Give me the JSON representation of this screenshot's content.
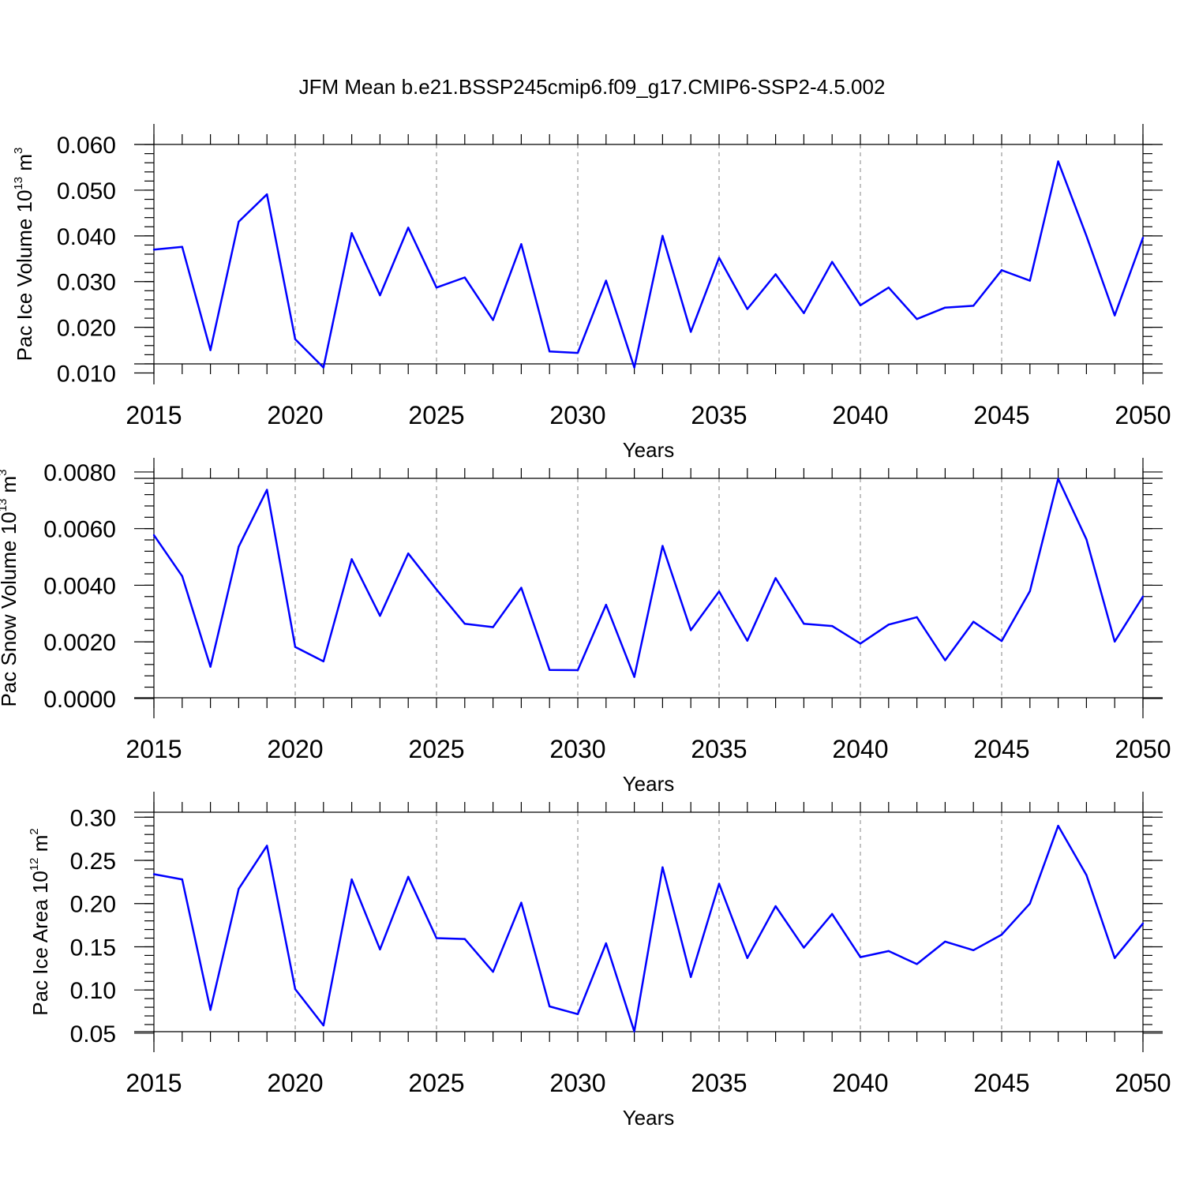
{
  "title": "JFM Mean b.e21.BSSP245cmip6.f09_g17.CMIP6-SSP2-4.5.002",
  "chart_data": [
    {
      "type": "line",
      "ylabel": "Pac Ice Volume 10",
      "ylabel_exp": "13",
      "ylabel_unit": " m",
      "ylabel_unit_exp": "3",
      "xlabel": "Years",
      "xlim": [
        2015,
        2050
      ],
      "ylim": [
        0.0075,
        0.0645
      ],
      "y_ticks": [
        0.01,
        0.02,
        0.03,
        0.04,
        0.05,
        0.06
      ],
      "y_tick_labels": [
        "0.010",
        "0.020",
        "0.030",
        "0.040",
        "0.050",
        "0.060"
      ],
      "x_ticks": [
        2015,
        2020,
        2025,
        2030,
        2035,
        2040,
        2045,
        2050
      ],
      "x_tick_labels": [
        "2015",
        "2020",
        "2025",
        "2030",
        "2035",
        "2040",
        "2045",
        "2050"
      ],
      "grid_x": [
        2020,
        2025,
        2030,
        2035,
        2040,
        2045
      ],
      "color": "#0000ff",
      "x": [
        2015,
        2016,
        2017,
        2018,
        2019,
        2020,
        2021,
        2022,
        2023,
        2024,
        2025,
        2026,
        2027,
        2028,
        2029,
        2030,
        2031,
        2032,
        2033,
        2034,
        2035,
        2036,
        2037,
        2038,
        2039,
        2040,
        2041,
        2042,
        2043,
        2044,
        2045,
        2046,
        2047,
        2048,
        2049,
        2050
      ],
      "y": [
        0.037,
        0.0376,
        0.015,
        0.0431,
        0.0491,
        0.0174,
        0.0112,
        0.0406,
        0.027,
        0.0418,
        0.0287,
        0.0309,
        0.0216,
        0.0382,
        0.0147,
        0.0144,
        0.0302,
        0.0112,
        0.04,
        0.019,
        0.0352,
        0.024,
        0.0316,
        0.0231,
        0.0343,
        0.0248,
        0.0287,
        0.0218,
        0.0243,
        0.0247,
        0.0325,
        0.0302,
        0.0563,
        0.04,
        0.0226,
        0.0396
      ]
    },
    {
      "type": "line",
      "ylabel": "Pac Snow Volume 10",
      "ylabel_exp": "13",
      "ylabel_unit": " m",
      "ylabel_unit_exp": "3",
      "xlabel": "Years",
      "xlim": [
        2015,
        2050
      ],
      "ylim": [
        -0.0007,
        0.0085
      ],
      "y_ticks": [
        0.0,
        0.002,
        0.004,
        0.006,
        0.008
      ],
      "y_tick_labels": [
        "0.0000",
        "0.0020",
        "0.0040",
        "0.0060",
        "0.0080"
      ],
      "x_ticks": [
        2015,
        2020,
        2025,
        2030,
        2035,
        2040,
        2045,
        2050
      ],
      "x_tick_labels": [
        "2015",
        "2020",
        "2025",
        "2030",
        "2035",
        "2040",
        "2045",
        "2050"
      ],
      "grid_x": [
        2020,
        2025,
        2030,
        2035,
        2040,
        2045
      ],
      "color": "#0000ff",
      "x": [
        2015,
        2016,
        2017,
        2018,
        2019,
        2020,
        2021,
        2022,
        2023,
        2024,
        2025,
        2026,
        2027,
        2028,
        2029,
        2030,
        2031,
        2032,
        2033,
        2034,
        2035,
        2036,
        2037,
        2038,
        2039,
        2040,
        2041,
        2042,
        2043,
        2044,
        2045,
        2046,
        2047,
        2048,
        2049,
        2050
      ],
      "y": [
        0.00577,
        0.00432,
        0.00112,
        0.00536,
        0.00737,
        0.00182,
        0.00131,
        0.00492,
        0.00292,
        0.00512,
        0.00385,
        0.00264,
        0.00252,
        0.00391,
        0.00101,
        0.001,
        0.00331,
        0.00076,
        0.00539,
        0.00241,
        0.00378,
        0.00204,
        0.00425,
        0.00264,
        0.00256,
        0.00194,
        0.00261,
        0.00287,
        0.00135,
        0.00271,
        0.00203,
        0.00379,
        0.00776,
        0.00562,
        0.00201,
        0.0036
      ]
    },
    {
      "type": "line",
      "ylabel": "Pac Ice Area 10",
      "ylabel_exp": "12",
      "ylabel_unit": " m",
      "ylabel_unit_exp": "2",
      "xlabel": "Years",
      "xlim": [
        2015,
        2050
      ],
      "ylim": [
        0.028,
        0.3295
      ],
      "y_ticks": [
        0.05,
        0.1,
        0.15,
        0.2,
        0.25,
        0.3
      ],
      "y_tick_labels": [
        "0.05",
        "0.10",
        "0.15",
        "0.20",
        "0.25",
        "0.30"
      ],
      "x_ticks": [
        2015,
        2020,
        2025,
        2030,
        2035,
        2040,
        2045,
        2050
      ],
      "x_tick_labels": [
        "2015",
        "2020",
        "2025",
        "2030",
        "2035",
        "2040",
        "2045",
        "2050"
      ],
      "grid_x": [
        2020,
        2025,
        2030,
        2035,
        2040,
        2045
      ],
      "color": "#0000ff",
      "x": [
        2015,
        2016,
        2017,
        2018,
        2019,
        2020,
        2021,
        2022,
        2023,
        2024,
        2025,
        2026,
        2027,
        2028,
        2029,
        2030,
        2031,
        2032,
        2033,
        2034,
        2035,
        2036,
        2037,
        2038,
        2039,
        2040,
        2041,
        2042,
        2043,
        2044,
        2045,
        2046,
        2047,
        2048,
        2049,
        2050
      ],
      "y": [
        0.234,
        0.228,
        0.077,
        0.217,
        0.267,
        0.101,
        0.059,
        0.228,
        0.147,
        0.231,
        0.16,
        0.159,
        0.121,
        0.201,
        0.081,
        0.072,
        0.154,
        0.052,
        0.242,
        0.115,
        0.223,
        0.137,
        0.197,
        0.149,
        0.188,
        0.138,
        0.145,
        0.13,
        0.156,
        0.146,
        0.164,
        0.2,
        0.29,
        0.233,
        0.137,
        0.177
      ]
    }
  ]
}
